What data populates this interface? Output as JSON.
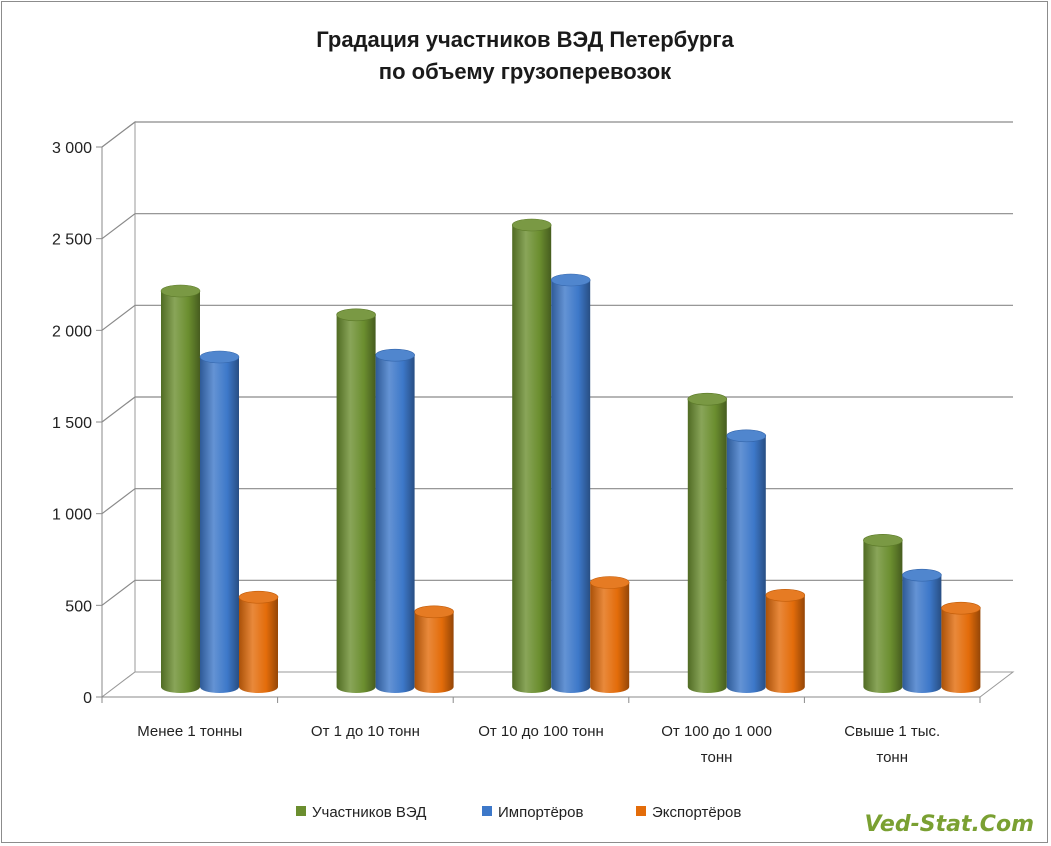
{
  "chart_data": {
    "type": "bar",
    "title_lines": [
      "Градация участников ВЭД Петербурга",
      "по объему грузоперевозок"
    ],
    "category_lines": [
      [
        "Менее 1 тонны"
      ],
      [
        "От 1 до 10 тонн"
      ],
      [
        "От 10 до 100 тонн"
      ],
      [
        "От 100 до 1 000",
        "тонн"
      ],
      [
        "Свыше 1 тыс.",
        "тонн"
      ]
    ],
    "series": [
      {
        "name": "Участников ВЭД",
        "color": "#6b8e2f",
        "values": [
          2160,
          2030,
          2520,
          1570,
          800
        ]
      },
      {
        "name": "Импортёров",
        "color": "#3d78c9",
        "values": [
          1800,
          1810,
          2220,
          1370,
          610
        ]
      },
      {
        "name": "Экспортёров",
        "color": "#e36c0a",
        "values": [
          490,
          410,
          570,
          500,
          430
        ]
      }
    ],
    "y_ticks": [
      "0",
      "500",
      "1 000",
      "1 500",
      "2 000",
      "2 500",
      "3 000"
    ],
    "ylim": [
      0,
      3000
    ],
    "grid": true,
    "legend_position": "bottom"
  },
  "watermark": "Ved-Stat.Com"
}
